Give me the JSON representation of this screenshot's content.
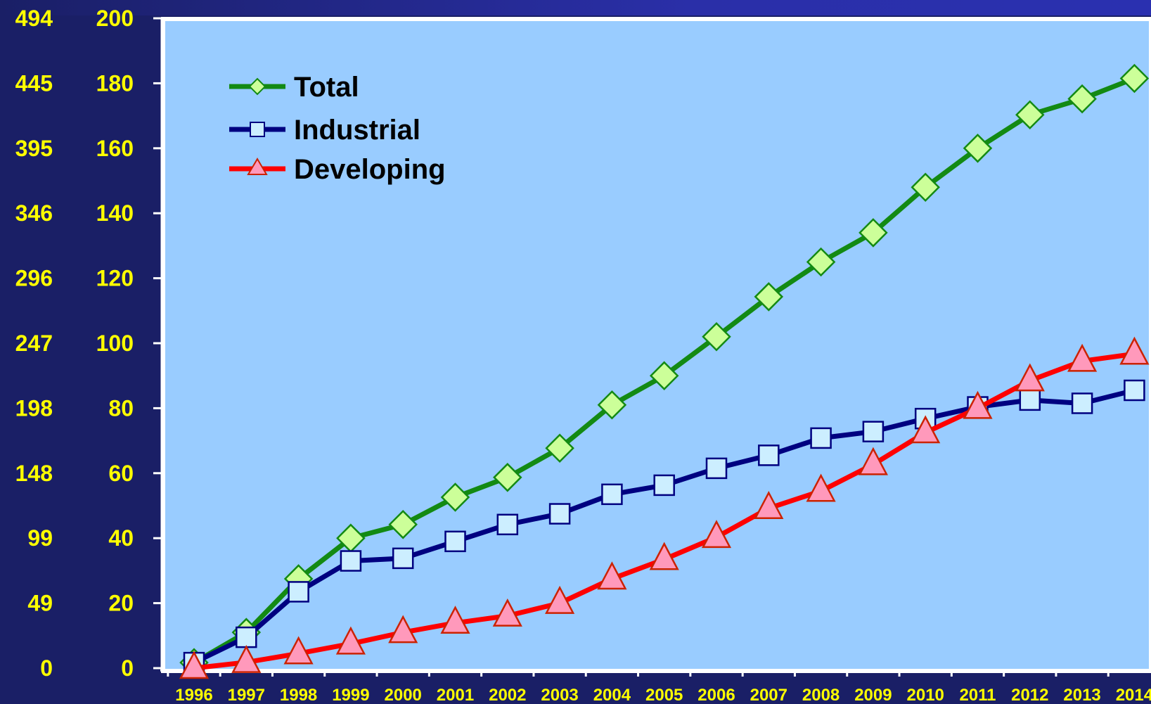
{
  "chart_data": {
    "type": "line",
    "x": [
      "1996",
      "1997",
      "1998",
      "1999",
      "2000",
      "2001",
      "2002",
      "2003",
      "2004",
      "2005",
      "2006",
      "2007",
      "2008",
      "2009",
      "2010",
      "2011",
      "2012",
      "2013",
      "2014"
    ],
    "y_left_outer_ticks": [
      "494",
      "445",
      "395",
      "346",
      "296",
      "247",
      "198",
      "148",
      "99",
      "49",
      "0"
    ],
    "y_left_inner_ticks": [
      "200",
      "180",
      "160",
      "140",
      "120",
      "100",
      "80",
      "60",
      "40",
      "20",
      "0"
    ],
    "ylim": [
      0,
      200
    ],
    "grid": false,
    "legend_position": "top-left",
    "series": [
      {
        "name": "Total",
        "color": "#138a13",
        "marker": "diamond",
        "marker_fill": "#ccff99",
        "values": [
          1.7,
          11,
          27.5,
          40,
          44.2,
          52.6,
          58.7,
          67.7,
          81,
          90,
          102,
          114.3,
          125,
          134,
          148,
          160,
          170.3,
          175.2,
          181.5
        ]
      },
      {
        "name": "Industrial",
        "color": "#000080",
        "marker": "square",
        "marker_fill": "#cceeff",
        "values": [
          1.7,
          9.5,
          23.5,
          33,
          33.8,
          39,
          44.2,
          47.5,
          53.5,
          56.3,
          61.5,
          65.5,
          70.8,
          72.8,
          76.8,
          80.4,
          82.5,
          81.5,
          85.5
        ]
      },
      {
        "name": "Developing",
        "color": "#ff0000",
        "marker": "triangle",
        "marker_fill": "#ff99bb",
        "values": [
          0,
          1.8,
          4.5,
          7.5,
          11,
          13.9,
          16.1,
          20,
          27.5,
          33.5,
          40.3,
          49.2,
          54.5,
          62.7,
          72.5,
          80,
          88.5,
          94.5,
          96.7
        ]
      }
    ]
  }
}
